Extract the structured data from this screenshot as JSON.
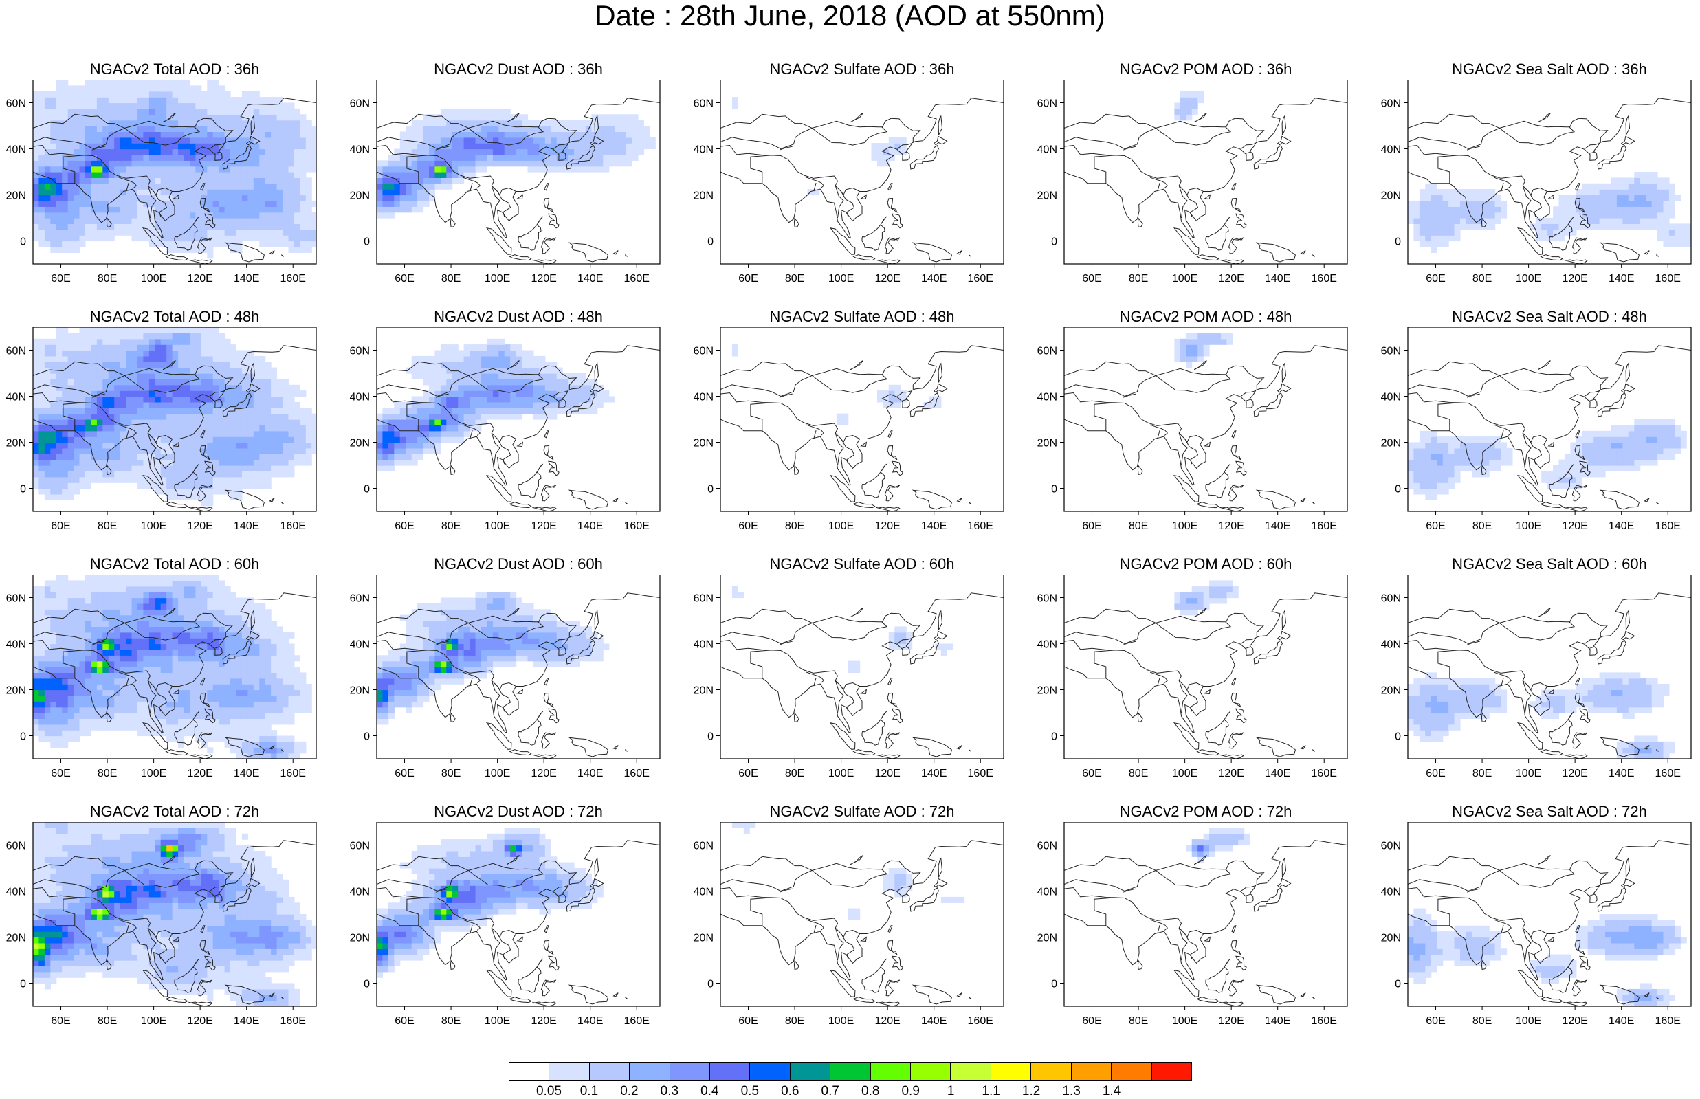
{
  "title": "Date : 28th June, 2018 (AOD at 550nm)",
  "axes": {
    "lat_ticks": [
      "60N",
      "40N",
      "20N",
      "0"
    ],
    "lon_ticks": [
      "60E",
      "80E",
      "100E",
      "120E",
      "140E",
      "160E"
    ]
  },
  "rows": [
    {
      "titles": [
        "NGACv2 Total AOD : 36h",
        "NGACv2 Dust AOD : 36h",
        "NGACv2 Sulfate AOD : 36h",
        "NGACv2 POM AOD : 36h",
        "NGACv2 Sea Salt AOD : 36h"
      ]
    },
    {
      "titles": [
        "NGACv2 Total AOD : 48h",
        "NGACv2 Dust AOD : 48h",
        "NGACv2 Sulfate AOD : 48h",
        "NGACv2 POM AOD : 48h",
        "NGACv2 Sea Salt AOD : 48h"
      ]
    },
    {
      "titles": [
        "NGACv2 Total AOD : 60h",
        "NGACv2 Dust AOD : 60h",
        "NGACv2 Sulfate AOD : 60h",
        "NGACv2 POM AOD : 60h",
        "NGACv2 Sea Salt AOD : 60h"
      ]
    },
    {
      "titles": [
        "NGACv2 Total AOD : 72h",
        "NGACv2 Dust AOD : 72h",
        "NGACv2 Sulfate AOD : 72h",
        "NGACv2 POM AOD : 72h",
        "NGACv2 Sea Salt  AOD : 72h"
      ]
    }
  ],
  "colorbar": {
    "labels": [
      "0.05",
      "0.1",
      "0.2",
      "0.3",
      "0.4",
      "0.5",
      "0.6",
      "0.7",
      "0.8",
      "0.9",
      "1",
      "1.1",
      "1.2",
      "1.3",
      "1.4"
    ],
    "colors": [
      "#ffffff",
      "#d6e2ff",
      "#b5c9ff",
      "#8eb2ff",
      "#7f96ff",
      "#6370f8",
      "#0063ff",
      "#009696",
      "#00c633",
      "#63ff00",
      "#96ff00",
      "#c6ff33",
      "#ffff00",
      "#ffc600",
      "#ffa000",
      "#ff7c00",
      "#ff1900"
    ]
  }
}
